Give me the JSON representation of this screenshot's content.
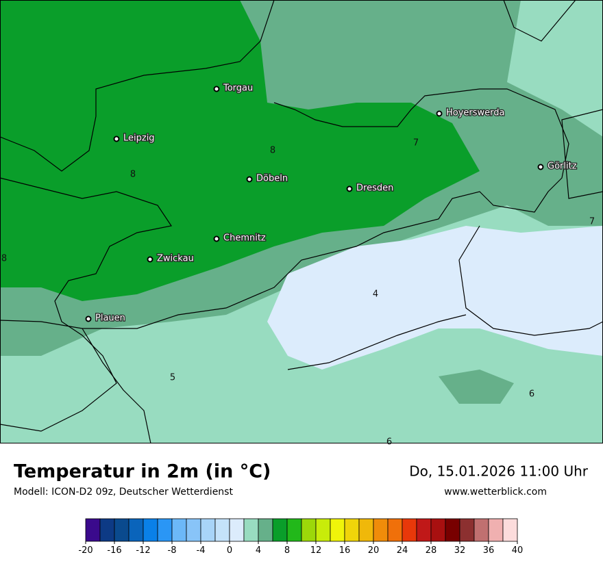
{
  "map": {
    "cities": [
      "Torgau",
      "Leipzig",
      "Döbeln",
      "Dresden",
      "Hoyerswerda",
      "Görlitz",
      "Chemnitz",
      "Zwickau",
      "Plauen"
    ],
    "contour_labels": [
      8,
      8,
      7,
      8,
      7,
      4,
      5,
      6,
      6
    ]
  },
  "footer": {
    "title": "Temperatur in 2m (in °C)",
    "subtitle": "Modell: ICON-D2 09z, Deutscher Wetterdienst",
    "datetime": "Do, 15.01.2026 11:00 Uhr",
    "website": "www.wetterblick.com"
  },
  "colorbar": {
    "lim": [
      -20,
      40
    ],
    "ticks": [
      -20,
      -16,
      -12,
      -8,
      -4,
      0,
      4,
      8,
      12,
      16,
      20,
      24,
      28,
      32,
      36,
      40
    ],
    "colors": [
      "#3a0a8c",
      "#0d3a85",
      "#0a4a8e",
      "#0a64bb",
      "#0a80e8",
      "#2a96f5",
      "#6cb8f8",
      "#88c4f8",
      "#a8d4f8",
      "#c4e2fa",
      "#dcecfc",
      "#98dcc0",
      "#66b08a",
      "#0a9e2a",
      "#22b81a",
      "#9cd80a",
      "#c8ec0a",
      "#f0f40a",
      "#f0d40a",
      "#f0b80a",
      "#f08c0a",
      "#f0700a",
      "#e8380a",
      "#c01818",
      "#a81010",
      "#780000",
      "#8c3030",
      "#c07070",
      "#f0b0b0",
      "#fcdcdc"
    ]
  }
}
